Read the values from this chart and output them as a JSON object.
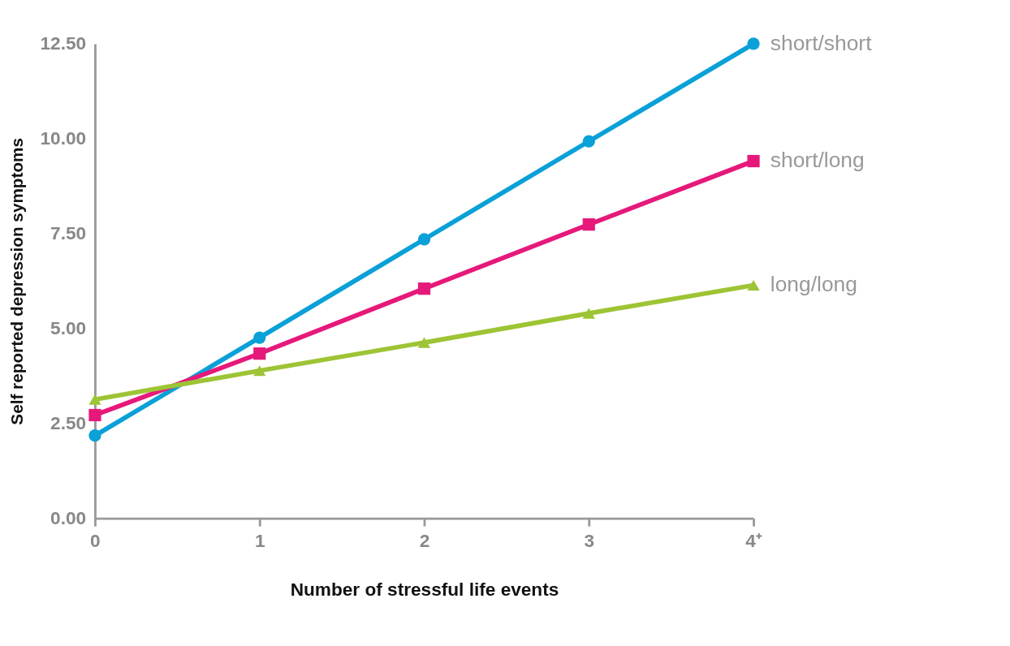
{
  "chart_data": {
    "type": "line",
    "xlabel": "Number of stressful life events",
    "ylabel": "Self reported depression symptoms",
    "categories": [
      "0",
      "1",
      "2",
      "3",
      "4⁺"
    ],
    "ylim": [
      0,
      12.5
    ],
    "yticks": [
      {
        "value": 0,
        "label": "0.00"
      },
      {
        "value": 2.5,
        "label": "2.50"
      },
      {
        "value": 5,
        "label": "5.00"
      },
      {
        "value": 7.5,
        "label": "7.50"
      },
      {
        "value": 10,
        "label": "10.00"
      },
      {
        "value": 12.5,
        "label": "12.50"
      }
    ],
    "grid": false,
    "legend": false,
    "series": [
      {
        "name": "short/short",
        "color": "#0aa0d8",
        "marker": "circle",
        "values": [
          2.18,
          4.76,
          7.35,
          9.93,
          12.5
        ]
      },
      {
        "name": "short/long",
        "color": "#e6197a",
        "marker": "square",
        "values": [
          2.72,
          4.34,
          6.05,
          7.74,
          9.41
        ]
      },
      {
        "name": "long/long",
        "color": "#9dc434",
        "marker": "triangle",
        "values": [
          3.13,
          3.89,
          4.63,
          5.4,
          6.14
        ]
      }
    ]
  }
}
